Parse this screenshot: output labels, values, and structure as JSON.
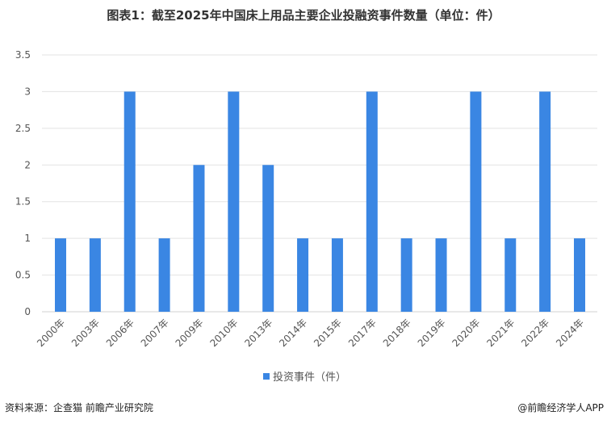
{
  "chart_data": {
    "type": "bar",
    "title": "图表1：截至2025年中国床上用品主要企业投融资事件数量（单位：件）",
    "categories": [
      "2000年",
      "2003年",
      "2006年",
      "2007年",
      "2009年",
      "2010年",
      "2013年",
      "2014年",
      "2015年",
      "2017年",
      "2018年",
      "2019年",
      "2020年",
      "2021年",
      "2022年",
      "2024年"
    ],
    "series": [
      {
        "name": "投资事件（件）",
        "values": [
          1,
          1,
          3,
          1,
          2,
          3,
          2,
          1,
          1,
          3,
          1,
          1,
          3,
          1,
          3,
          1
        ]
      }
    ],
    "ylim": [
      0,
      3.5
    ],
    "yticks": [
      "0",
      "0.5",
      "1",
      "1.5",
      "2",
      "2.5",
      "3",
      "3.5"
    ],
    "grid": true,
    "legend": "bottom",
    "color": "#3A86E3"
  },
  "footer": {
    "source": "资料来源：企查猫 前瞻产业研究院",
    "credit": "@前瞻经济学人APP"
  }
}
